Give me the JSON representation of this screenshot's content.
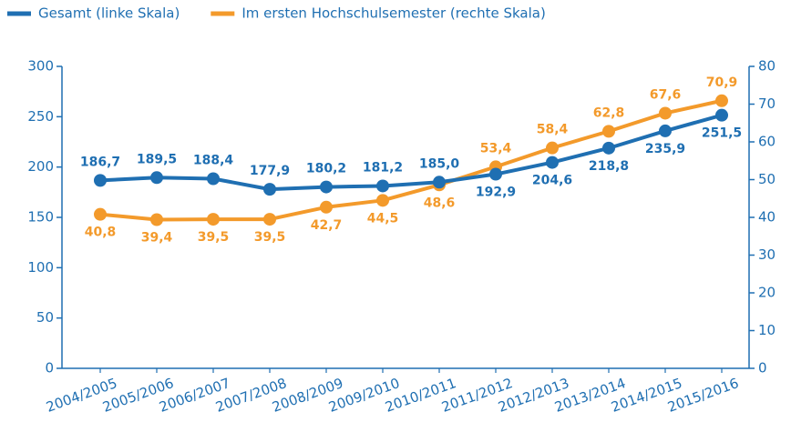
{
  "chart_data": {
    "type": "line",
    "categories": [
      "2004/2005",
      "2005/2006",
      "2006/2007",
      "2007/2008",
      "2008/2009",
      "2009/2010",
      "2010/2011",
      "2011/2012",
      "2012/2013",
      "2013/2014",
      "2014/2015",
      "2015/2016"
    ],
    "series": [
      {
        "name": "Gesamt (linke Skala)",
        "color": "#1f6fb2",
        "values": [
          186.7,
          189.5,
          188.4,
          177.9,
          180.2,
          181.2,
          185.0,
          192.9,
          204.6,
          218.8,
          235.9,
          251.5
        ],
        "value_labels": [
          "186,7",
          "189,5",
          "188,4",
          "177,9",
          "180,2",
          "181,2",
          "185,0",
          "192,9",
          "204,6",
          "218,8",
          "235,9",
          "251,5"
        ]
      },
      {
        "name": "Im ersten Hochschulsemester (rechte Skala)",
        "color": "#f39a2b",
        "axis": "y2",
        "values": [
          40.8,
          39.4,
          39.5,
          39.5,
          42.7,
          44.5,
          48.6,
          53.4,
          58.4,
          62.8,
          67.6,
          70.9
        ],
        "value_labels": [
          "40,8",
          "39,4",
          "39,5",
          "39,5",
          "42,7",
          "44,5",
          "48,6",
          "53,4",
          "58,4",
          "62,8",
          "67,6",
          "70,9"
        ]
      }
    ],
    "ylim": [
      0,
      300
    ],
    "yticks": [
      0,
      50,
      100,
      150,
      200,
      250,
      300
    ],
    "y2lim": [
      0,
      80
    ],
    "y2ticks": [
      0,
      10,
      20,
      30,
      40,
      50,
      60,
      70,
      80
    ],
    "legend": "top-left"
  }
}
